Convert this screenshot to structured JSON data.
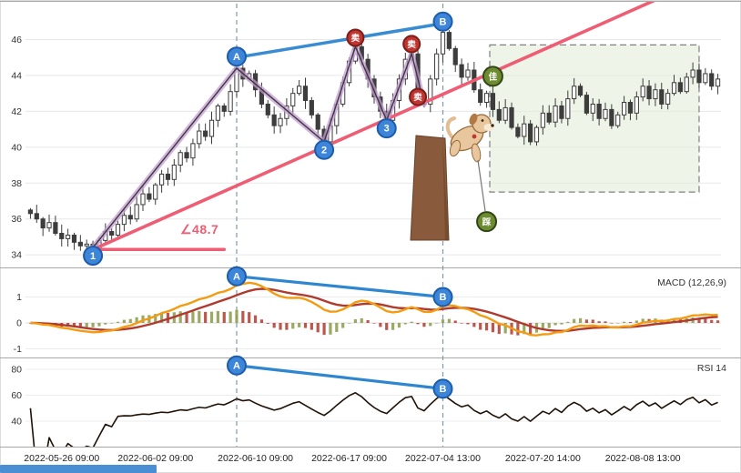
{
  "chart_data": {
    "type": "candlestick",
    "panels": {
      "main": {
        "yticks": [
          34,
          36,
          38,
          40,
          42,
          44,
          46
        ],
        "ylim": [
          33.4,
          47.9
        ],
        "closes": [
          36.3,
          36.0,
          35.5,
          35.8,
          35.2,
          34.9,
          35.1,
          34.7,
          34.5,
          34.6,
          34.4,
          34.8,
          35.3,
          35.1,
          35.7,
          36.2,
          36.0,
          36.8,
          37.4,
          37.1,
          37.9,
          38.5,
          38.2,
          39.0,
          39.7,
          39.4,
          40.2,
          40.9,
          40.6,
          41.5,
          42.3,
          42.0,
          43.1,
          44.4,
          43.8,
          44.1,
          43.2,
          42.4,
          41.8,
          41.2,
          41.6,
          42.3,
          43.0,
          43.4,
          42.6,
          41.8,
          41.0,
          40.3,
          41.2,
          42.4,
          43.6,
          44.8,
          45.6,
          44.9,
          43.8,
          42.8,
          42.0,
          41.5,
          42.6,
          43.8,
          44.9,
          45.2,
          43.0,
          42.4,
          43.8,
          45.2,
          46.4,
          45.5,
          44.6,
          43.9,
          44.3,
          43.2,
          42.5,
          43.0,
          42.1,
          41.5,
          42.2,
          41.1,
          40.6,
          41.3,
          40.3,
          41.1,
          41.9,
          41.4,
          42.3,
          41.6,
          42.7,
          43.4,
          42.9,
          41.9,
          42.4,
          41.6,
          42.1,
          41.2,
          41.8,
          42.5,
          41.9,
          42.8,
          43.4,
          42.7,
          43.2,
          42.4,
          43.0,
          43.6,
          43.1,
          43.9,
          44.3,
          43.6,
          44.1,
          43.4,
          43.8
        ]
      },
      "macd": {
        "label": "MACD (12,26,9)",
        "fast": 12,
        "slow": 26,
        "signal_period": 9,
        "yticks": [
          -1,
          0,
          1
        ]
      },
      "rsi": {
        "label": "RSI 14",
        "period": 14,
        "yticks": [
          40,
          60,
          80
        ]
      }
    },
    "x_ticks": [
      {
        "bar": 5,
        "label": "2022-05-26 09:00"
      },
      {
        "bar": 20,
        "label": "2022-06-02 09:00"
      },
      {
        "bar": 36,
        "label": "2022-06-10 09:00"
      },
      {
        "bar": 51,
        "label": "2022-06-17 09:00"
      },
      {
        "bar": 66,
        "label": "2022-07-04 13:00"
      },
      {
        "bar": 82,
        "label": "2022-07-20 14:00"
      },
      {
        "bar": 98,
        "label": "2022-08-08 13:00"
      }
    ],
    "annotations": {
      "angle_label": "∠48.7",
      "trend_ray": {
        "from_bar": 10,
        "from_price": 34.3,
        "slope_per_bar": 0.1545
      },
      "horizontal_ray": {
        "from_bar": 10,
        "to_bar": 31,
        "price": 34.3
      },
      "zigzag": [
        [
          10,
          34.4
        ],
        [
          33,
          44.4
        ],
        [
          47,
          40.3
        ],
        [
          52,
          45.6
        ],
        [
          57,
          41.5
        ],
        [
          61,
          45.2
        ],
        [
          63,
          42.4
        ]
      ],
      "ab_line_main": [
        [
          33,
          45.0
        ],
        [
          66,
          46.9
        ]
      ],
      "vlines": [
        33,
        66
      ],
      "box": {
        "bar1": 74,
        "bar2": 107.5,
        "price1": 37.5,
        "price2": 45.7
      },
      "markers_main": [
        {
          "label": "1",
          "bar": 10,
          "price": 33.95,
          "style": "blue"
        },
        {
          "label": "2",
          "bar": 47,
          "price": 39.85,
          "style": "blue"
        },
        {
          "label": "3",
          "bar": 57,
          "price": 41.05,
          "style": "blue"
        },
        {
          "label": "A",
          "bar": 33,
          "price": 45.05,
          "style": "blue"
        },
        {
          "label": "B",
          "bar": 66,
          "price": 47.0,
          "style": "blue"
        },
        {
          "label": "卖",
          "bar": 52,
          "price": 46.1,
          "style": "red"
        },
        {
          "label": "卖",
          "bar": 61,
          "price": 45.75,
          "style": "red"
        },
        {
          "label": "卖",
          "bar": 62,
          "price": 42.8,
          "style": "red"
        },
        {
          "label": "佳",
          "bar": 74,
          "price": 43.95,
          "style": "green"
        },
        {
          "label": "踩",
          "bar": 73,
          "price": 35.85,
          "style": "green"
        }
      ],
      "markers_macd": [
        {
          "label": "A",
          "bar": 33,
          "value": 1.8
        },
        {
          "label": "B",
          "bar": 66,
          "value": 1.0
        }
      ],
      "markers_rsi": [
        {
          "label": "A",
          "bar": 33,
          "value": 83
        },
        {
          "label": "B",
          "bar": 66,
          "value": 65
        }
      ]
    },
    "colors": {
      "up": "#ffffff",
      "down": "#3d3d3d",
      "outline": "#3d3d3d",
      "trend_pink": "#ee5d74",
      "zigzag_glow": "#c39bd3",
      "zigzag_core": "#3a3a3a",
      "ab_blue": "#2e86d0",
      "macd_line": "#f39c12",
      "macd_signal": "#b03a2e",
      "hist_pos": "#8a9a46",
      "hist_neg": "#b03a2e",
      "rsi_line": "#201207",
      "marker_blue": "#3d85d8",
      "marker_red": "#c13530",
      "marker_green": "#6d8b2f",
      "box_fill": "#e3ecd7",
      "vline": "#7f98a8"
    }
  }
}
